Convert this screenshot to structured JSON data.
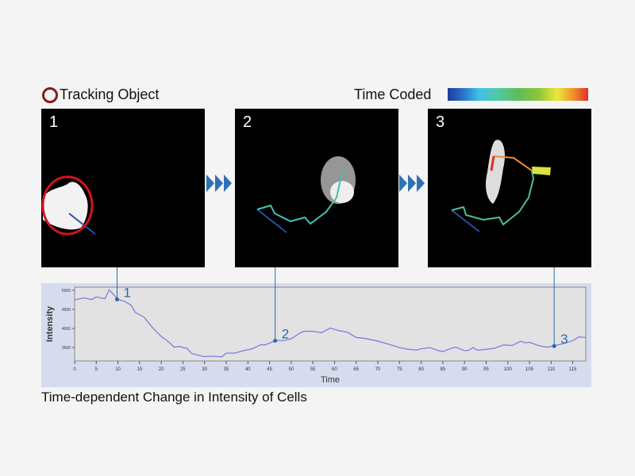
{
  "legend": {
    "tracking_label": "Tracking Object",
    "time_label": "Time Coded",
    "tracking_color": "#8a1a1a"
  },
  "panels": [
    {
      "number": "1"
    },
    {
      "number": "2"
    },
    {
      "number": "3"
    }
  ],
  "caption": "Time-dependent Change in Intensity of Cells",
  "chart_data": {
    "type": "line",
    "xlabel": "Time",
    "ylabel": "Intensity",
    "xlim": [
      0,
      118
    ],
    "ylim": [
      3150,
      5080
    ],
    "xticks": [
      0,
      5,
      10,
      15,
      20,
      25,
      30,
      35,
      40,
      45,
      50,
      55,
      60,
      65,
      70,
      75,
      80,
      85,
      90,
      95,
      100,
      105,
      110,
      115
    ],
    "yticks": [
      3500,
      4000,
      4500,
      5000
    ],
    "line_color": "#7b7ee0",
    "x": [
      0,
      2,
      4,
      5,
      7,
      8,
      10,
      11.5,
      13,
      14,
      16,
      18,
      20,
      22,
      23,
      24,
      26,
      27,
      30,
      31,
      34,
      35,
      37,
      39,
      41,
      43,
      44,
      46,
      47,
      48,
      50,
      52,
      53,
      55,
      57,
      59,
      61,
      63,
      65,
      67,
      70,
      72,
      75,
      77,
      79,
      80,
      82,
      84,
      85,
      87,
      88,
      90,
      91,
      92,
      93,
      95,
      97,
      99,
      101,
      103,
      104,
      105,
      107,
      109,
      110,
      111,
      113,
      115,
      116.5,
      118
    ],
    "y": [
      4745,
      4800,
      4760,
      4825,
      4780,
      5010,
      4760,
      4710,
      4615,
      4420,
      4300,
      4020,
      3790,
      3620,
      3510,
      3530,
      3480,
      3345,
      3260,
      3275,
      3260,
      3355,
      3355,
      3420,
      3470,
      3575,
      3570,
      3665,
      3690,
      3680,
      3730,
      3880,
      3930,
      3925,
      3890,
      4010,
      3945,
      3900,
      3765,
      3740,
      3670,
      3605,
      3500,
      3455,
      3435,
      3470,
      3500,
      3420,
      3395,
      3485,
      3510,
      3420,
      3430,
      3500,
      3430,
      3455,
      3485,
      3570,
      3555,
      3665,
      3625,
      3640,
      3555,
      3510,
      3530,
      3555,
      3610,
      3680,
      3785,
      3760
    ],
    "markers": [
      {
        "label": "1",
        "x": 9.8,
        "y": 4760
      },
      {
        "label": "2",
        "x": 46.3,
        "y": 3680
      },
      {
        "label": "3",
        "x": 110.7,
        "y": 3540
      }
    ],
    "marker_color": "#2a6aa8"
  }
}
